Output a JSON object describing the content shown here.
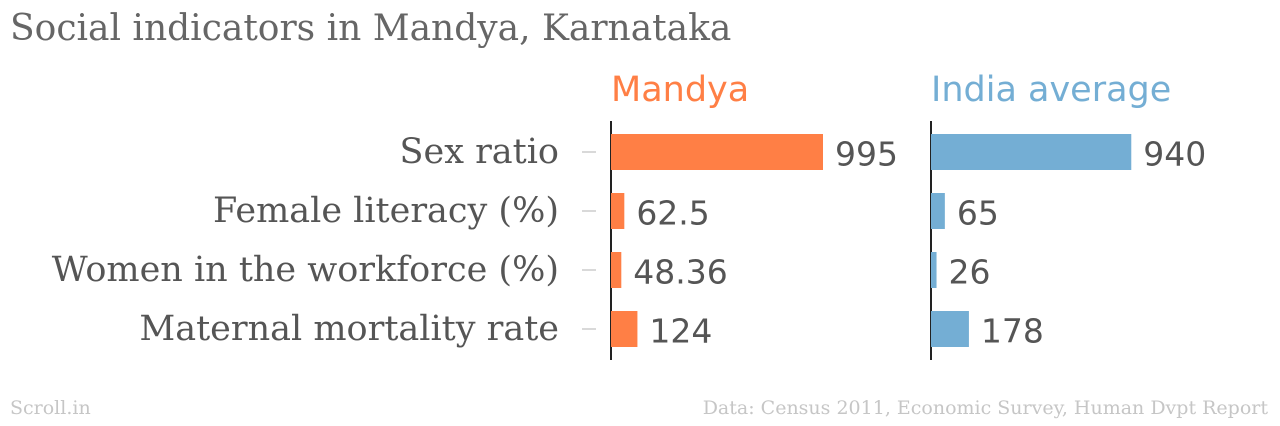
{
  "title": "Social indicators in Mandya, Karnataka",
  "footer": {
    "source_brand": "Scroll.in",
    "data_source": "Data: Census 2011, Economic Survey, Human Dvpt Report"
  },
  "colors": {
    "mandya": "#ff7f45",
    "india": "#74aed4",
    "text": "#555555",
    "axis": "#222222",
    "tick": "#cccccc"
  },
  "chart_data": {
    "type": "bar",
    "orientation": "horizontal",
    "categories": [
      "Sex ratio",
      "Female literacy (%)",
      "Women in the workforce (%)",
      "Maternal mortality rate"
    ],
    "series": [
      {
        "name": "Mandya",
        "values": [
          995,
          62.5,
          48.36,
          124
        ],
        "labels": [
          "995",
          "62.5",
          "48.36",
          "124"
        ]
      },
      {
        "name": "India average",
        "values": [
          940,
          65,
          26,
          178
        ],
        "labels": [
          "940",
          "65",
          "26",
          "178"
        ]
      }
    ],
    "xlim": [
      0,
      995
    ],
    "grid": false
  }
}
